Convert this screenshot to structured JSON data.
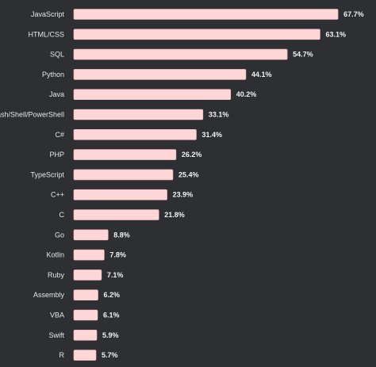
{
  "chart_data": {
    "type": "bar",
    "orientation": "horizontal",
    "title": "",
    "xlabel": "",
    "ylabel": "",
    "grid": false,
    "xlim": [
      0,
      100
    ],
    "categories": [
      "JavaScript",
      "HTML/CSS",
      "SQL",
      "Python",
      "Java",
      "Bash/Shell/PowerShell",
      "C#",
      "PHP",
      "TypeScript",
      "C++",
      "C",
      "Go",
      "Kotlin",
      "Ruby",
      "Assembly",
      "VBA",
      "Swift",
      "R"
    ],
    "values": [
      67.7,
      63.1,
      54.7,
      44.1,
      40.2,
      33.1,
      31.4,
      26.2,
      25.4,
      23.9,
      21.8,
      8.8,
      7.8,
      7.1,
      6.2,
      6.1,
      5.9,
      5.7
    ],
    "value_labels": [
      "67.7%",
      "63.1%",
      "54.7%",
      "44.1%",
      "40.2%",
      "33.1%",
      "31.4%",
      "26.2%",
      "25.4%",
      "23.9%",
      "21.8%",
      "8.8%",
      "7.8%",
      "7.1%",
      "6.2%",
      "6.1%",
      "5.9%",
      "5.7%"
    ],
    "colors": {
      "background": "#2d2f33",
      "bar": "#ffd6d8",
      "bar_stroke": "#f2b8bc",
      "category_text": "#e6e6e6",
      "value_text": "#f2f2f2"
    }
  }
}
